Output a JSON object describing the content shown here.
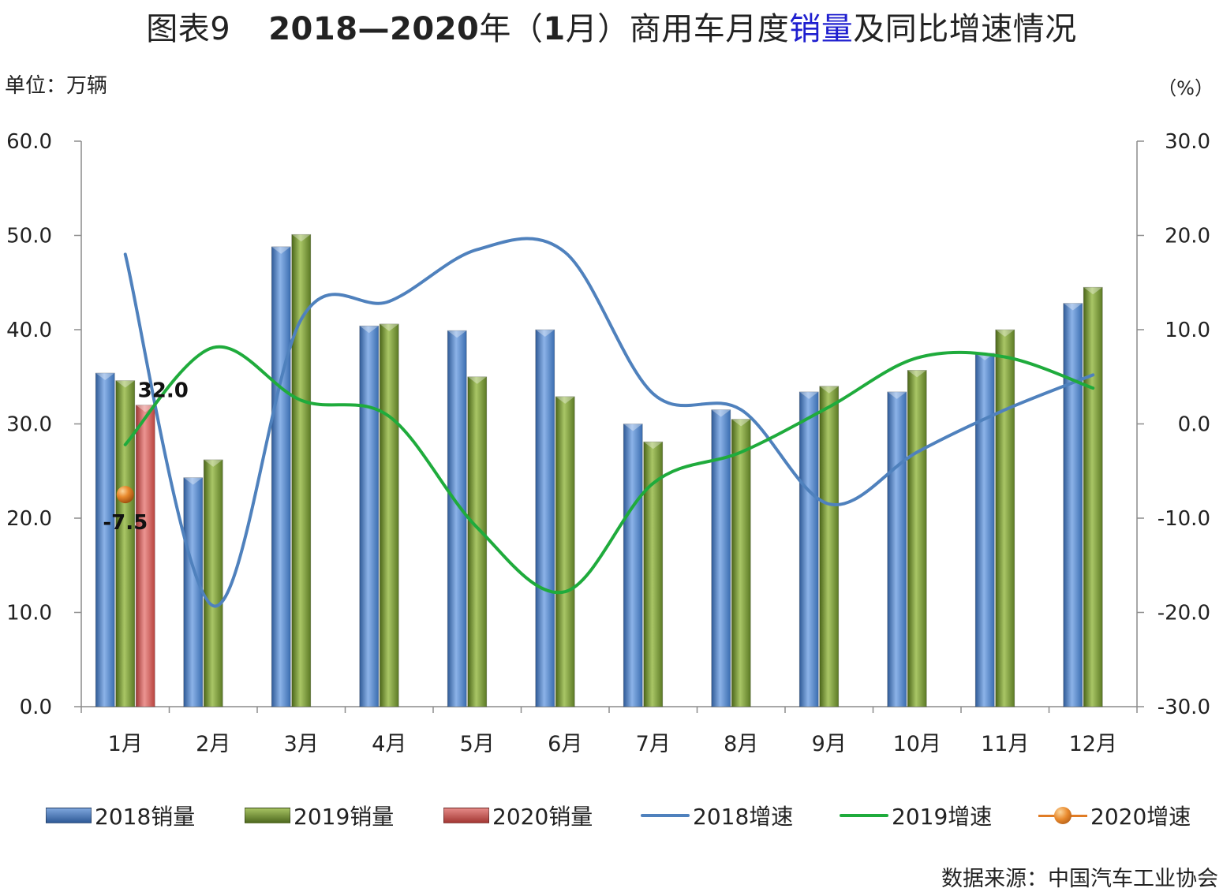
{
  "title": {
    "prefix": "图表9",
    "bold": "2018—2020",
    "part1": "年（",
    "month_bold": "1",
    "part2": "月）商用车月度",
    "highlight": "销量",
    "part3": "及同比增速情况"
  },
  "unit_left": "单位：万辆",
  "unit_right": "（%）",
  "source": "数据来源：中国汽车工业协会",
  "colors": {
    "s2018_bar": "#4f81bd",
    "s2019_bar": "#77933c",
    "s2020_bar": "#c0504d",
    "s2018_line": "#4f81bd",
    "s2019_line": "#1fab3c",
    "s2020_marker": "#e07c25",
    "axis": "#8c8c8c"
  },
  "chart_data": {
    "type": "bar",
    "categories": [
      "1月",
      "2月",
      "3月",
      "4月",
      "5月",
      "6月",
      "7月",
      "8月",
      "9月",
      "10月",
      "11月",
      "12月"
    ],
    "left_axis": {
      "ylim": [
        0,
        60
      ],
      "ticks": [
        "0.0",
        "10.0",
        "20.0",
        "30.0",
        "40.0",
        "50.0",
        "60.0"
      ]
    },
    "right_axis": {
      "ylim": [
        -30,
        30
      ],
      "ticks": [
        "-30.0",
        "-20.0",
        "-10.0",
        "0.0",
        "10.0",
        "20.0",
        "30.0"
      ]
    },
    "bar_series": [
      {
        "name": "2018销量",
        "values": [
          35.4,
          24.3,
          48.8,
          40.4,
          39.9,
          40.0,
          30.0,
          31.5,
          33.4,
          33.4,
          37.5,
          42.8
        ]
      },
      {
        "name": "2019销量",
        "values": [
          34.6,
          26.2,
          50.1,
          40.6,
          35.0,
          32.9,
          28.1,
          30.5,
          34.0,
          35.7,
          40.0,
          44.5
        ]
      },
      {
        "name": "2020销量",
        "values": [
          32.0,
          null,
          null,
          null,
          null,
          null,
          null,
          null,
          null,
          null,
          null,
          null
        ]
      }
    ],
    "line_series": [
      {
        "name": "2018增速",
        "axis": "right",
        "values": [
          18.0,
          -19.3,
          11.1,
          13.0,
          18.5,
          18.2,
          3.2,
          1.5,
          -8.5,
          -3.0,
          1.5,
          5.2
        ]
      },
      {
        "name": "2019增速",
        "axis": "right",
        "values": [
          -2.2,
          8.1,
          2.5,
          0.8,
          -11.0,
          -17.8,
          -6.3,
          -3.0,
          1.8,
          7.0,
          7.1,
          3.8
        ]
      },
      {
        "name": "2020增速",
        "axis": "right",
        "marker": true,
        "values": [
          -7.5,
          null,
          null,
          null,
          null,
          null,
          null,
          null,
          null,
          null,
          null,
          null
        ]
      }
    ],
    "data_labels": [
      {
        "series": "2020销量",
        "category": "1月",
        "text": "32.0"
      },
      {
        "series": "2020增速",
        "category": "1月",
        "text": "-7.5"
      }
    ],
    "legend_position": "bottom"
  }
}
